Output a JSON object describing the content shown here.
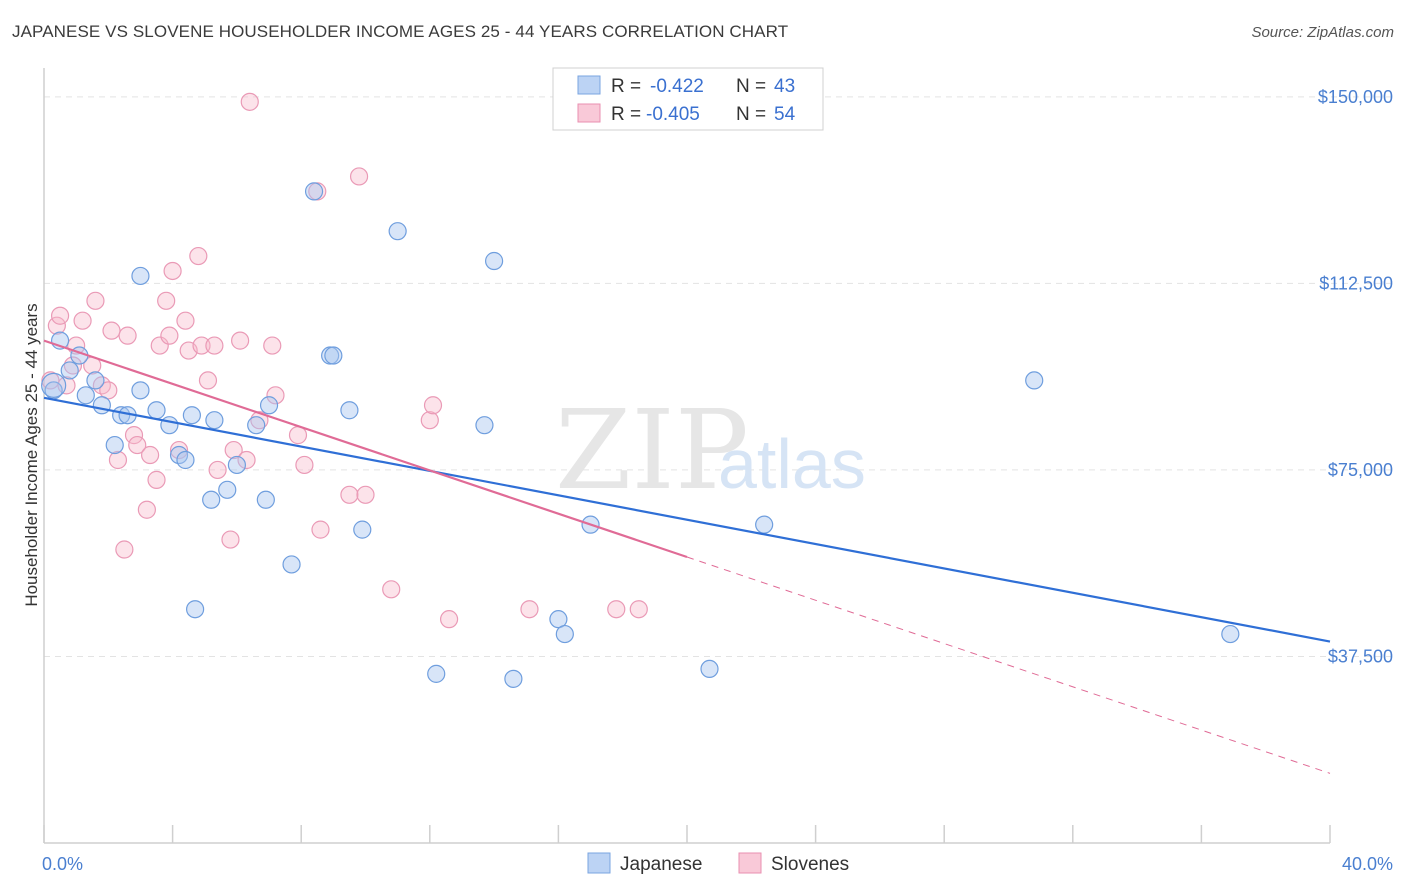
{
  "title": "JAPANESE VS SLOVENE HOUSEHOLDER INCOME AGES 25 - 44 YEARS CORRELATION CHART",
  "source": "Source: ZipAtlas.com",
  "watermark": {
    "zip": "ZIP",
    "atlas": "atlas"
  },
  "chart_data": {
    "type": "scatter",
    "title": "JAPANESE VS SLOVENE HOUSEHOLDER INCOME AGES 25 - 44 YEARS CORRELATION CHART",
    "xlabel": "",
    "ylabel": "Householder Income Ages 25 - 44 years",
    "xlim": [
      0,
      40
    ],
    "ylim": [
      0,
      155000
    ],
    "x_tick_labels": [
      "0.0%",
      "40.0%"
    ],
    "y_ticks": [
      37500,
      75000,
      112500,
      150000
    ],
    "y_tick_labels": [
      "$37,500",
      "$75,000",
      "$112,500",
      "$150,000"
    ],
    "legend": {
      "entries": [
        {
          "name": "Japanese",
          "r_label": "R =",
          "r": "-0.422",
          "n_label": "N =",
          "n": "43"
        },
        {
          "name": "Slovenes",
          "r_label": "R =",
          "r": "-0.405",
          "n_label": "N =",
          "n": "54"
        }
      ]
    },
    "colors": {
      "japanese_fill": "#a9c6f0",
      "japanese_line": "#2f6fd6",
      "slovenes_fill": "#f7b8cb",
      "slovenes_line": "#e06b96",
      "tick_label": "#4a7fd0"
    },
    "series": [
      {
        "name": "Japanese",
        "points": [
          [
            0.3,
            91000
          ],
          [
            0.5,
            101000
          ],
          [
            0.8,
            95000
          ],
          [
            1.1,
            98000
          ],
          [
            1.3,
            90000
          ],
          [
            1.6,
            93000
          ],
          [
            1.8,
            88000
          ],
          [
            2.2,
            80000
          ],
          [
            2.4,
            86000
          ],
          [
            2.6,
            86000
          ],
          [
            3.0,
            114000
          ],
          [
            3.0,
            91000
          ],
          [
            3.5,
            87000
          ],
          [
            3.9,
            84000
          ],
          [
            4.2,
            78000
          ],
          [
            4.4,
            77000
          ],
          [
            4.6,
            86000
          ],
          [
            4.7,
            47000
          ],
          [
            5.2,
            69000
          ],
          [
            5.3,
            85000
          ],
          [
            5.7,
            71000
          ],
          [
            6.0,
            76000
          ],
          [
            6.6,
            84000
          ],
          [
            6.9,
            69000
          ],
          [
            7.0,
            88000
          ],
          [
            7.7,
            56000
          ],
          [
            8.4,
            131000
          ],
          [
            8.9,
            98000
          ],
          [
            9.0,
            98000
          ],
          [
            9.5,
            87000
          ],
          [
            9.9,
            63000
          ],
          [
            11.0,
            123000
          ],
          [
            12.2,
            34000
          ],
          [
            13.7,
            84000
          ],
          [
            14.0,
            117000
          ],
          [
            14.6,
            33000
          ],
          [
            16.0,
            45000
          ],
          [
            16.2,
            42000
          ],
          [
            17.0,
            64000
          ],
          [
            20.7,
            35000
          ],
          [
            22.4,
            64000
          ],
          [
            30.8,
            93000
          ],
          [
            36.9,
            42000
          ]
        ]
      },
      {
        "name": "Slovenes",
        "points": [
          [
            0.2,
            93000
          ],
          [
            0.4,
            104000
          ],
          [
            0.5,
            106000
          ],
          [
            0.7,
            92000
          ],
          [
            0.9,
            96000
          ],
          [
            1.0,
            100000
          ],
          [
            1.2,
            105000
          ],
          [
            1.5,
            96000
          ],
          [
            1.6,
            109000
          ],
          [
            1.8,
            92000
          ],
          [
            2.0,
            91000
          ],
          [
            2.1,
            103000
          ],
          [
            2.3,
            77000
          ],
          [
            2.5,
            59000
          ],
          [
            2.6,
            102000
          ],
          [
            2.8,
            82000
          ],
          [
            2.9,
            80000
          ],
          [
            3.2,
            67000
          ],
          [
            3.3,
            78000
          ],
          [
            3.5,
            73000
          ],
          [
            3.6,
            100000
          ],
          [
            3.8,
            109000
          ],
          [
            3.9,
            102000
          ],
          [
            4.0,
            115000
          ],
          [
            4.2,
            79000
          ],
          [
            4.4,
            105000
          ],
          [
            4.5,
            99000
          ],
          [
            4.8,
            118000
          ],
          [
            4.9,
            100000
          ],
          [
            5.1,
            93000
          ],
          [
            5.3,
            100000
          ],
          [
            5.4,
            75000
          ],
          [
            5.8,
            61000
          ],
          [
            5.9,
            79000
          ],
          [
            6.1,
            101000
          ],
          [
            6.3,
            77000
          ],
          [
            6.4,
            149000
          ],
          [
            6.7,
            85000
          ],
          [
            7.1,
            100000
          ],
          [
            7.2,
            90000
          ],
          [
            7.9,
            82000
          ],
          [
            8.1,
            76000
          ],
          [
            8.5,
            131000
          ],
          [
            8.6,
            63000
          ],
          [
            9.5,
            70000
          ],
          [
            9.8,
            134000
          ],
          [
            10.0,
            70000
          ],
          [
            10.8,
            51000
          ],
          [
            12.0,
            85000
          ],
          [
            12.1,
            88000
          ],
          [
            12.6,
            45000
          ],
          [
            15.1,
            47000
          ],
          [
            17.8,
            47000
          ],
          [
            18.5,
            47000
          ]
        ]
      }
    ],
    "trendlines": [
      {
        "series": "Japanese",
        "x": [
          0,
          40
        ],
        "y": [
          89500,
          40500
        ],
        "style": "solid"
      },
      {
        "series": "Slovenes",
        "x": [
          0,
          20
        ],
        "y": [
          101000,
          57500
        ],
        "style": "solid"
      },
      {
        "series": "Slovenes",
        "x": [
          20,
          40
        ],
        "y": [
          57500,
          14000
        ],
        "style": "dashed"
      }
    ]
  }
}
